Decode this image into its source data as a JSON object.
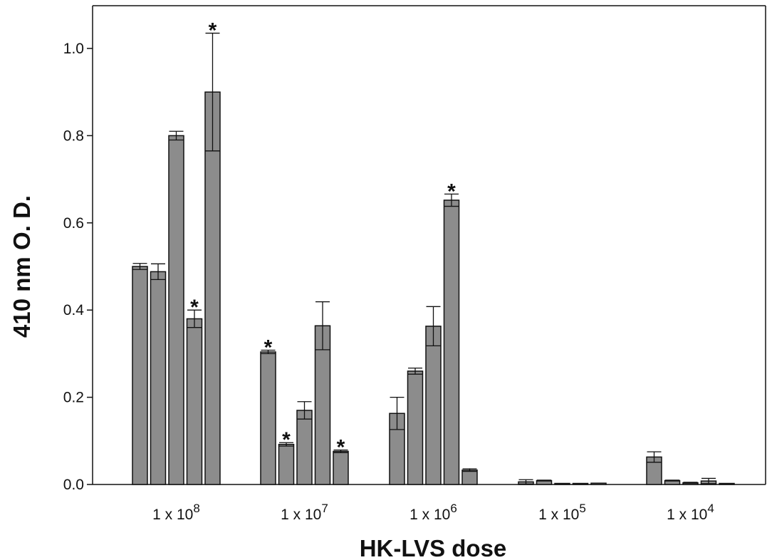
{
  "chart_data": {
    "type": "bar",
    "xlabel": "HK-LVS dose",
    "ylabel": "410 nm O. D.",
    "ylim": [
      0,
      1.0
    ],
    "yticks": [
      0.0,
      0.2,
      0.4,
      0.6,
      0.8,
      1.0
    ],
    "ytick_labels": [
      "0.0",
      "0.2",
      "0.4",
      "0.6",
      "0.8",
      "1.0"
    ],
    "grid": false,
    "bar_color": "#8c8c8c",
    "groups": [
      {
        "label": "1 x 10",
        "exponent": "8",
        "bars": [
          {
            "value": 0.5,
            "error": 0.007,
            "star": ""
          },
          {
            "value": 0.488,
            "error": 0.018,
            "star": ""
          },
          {
            "value": 0.8,
            "error": 0.01,
            "star": ""
          },
          {
            "value": 0.38,
            "error": 0.02,
            "star": "*"
          },
          {
            "value": 0.9,
            "error": 0.135,
            "star": "*"
          }
        ]
      },
      {
        "label": "1 x 10",
        "exponent": "7",
        "bars": [
          {
            "value": 0.304,
            "error": 0.004,
            "star": "*"
          },
          {
            "value": 0.092,
            "error": 0.004,
            "star": "*"
          },
          {
            "value": 0.17,
            "error": 0.02,
            "star": ""
          },
          {
            "value": 0.364,
            "error": 0.055,
            "star": ""
          },
          {
            "value": 0.076,
            "error": 0.003,
            "star": "*"
          }
        ]
      },
      {
        "label": "1 x 10",
        "exponent": "6",
        "bars": [
          {
            "value": 0.163,
            "error": 0.037,
            "star": ""
          },
          {
            "value": 0.26,
            "error": 0.007,
            "star": ""
          },
          {
            "value": 0.363,
            "error": 0.045,
            "star": ""
          },
          {
            "value": 0.652,
            "error": 0.014,
            "star": "*"
          },
          {
            "value": 0.033,
            "error": 0.003,
            "star": ""
          }
        ]
      },
      {
        "label": "1 x 10",
        "exponent": "5",
        "bars": [
          {
            "value": 0.006,
            "error": 0.005,
            "star": ""
          },
          {
            "value": 0.009,
            "error": 0.001,
            "star": ""
          },
          {
            "value": 0.002,
            "error": 0.0,
            "star": ""
          },
          {
            "value": 0.002,
            "error": 0.0,
            "star": ""
          },
          {
            "value": 0.003,
            "error": 0.0,
            "star": ""
          }
        ]
      },
      {
        "label": "1 x 10",
        "exponent": "4",
        "bars": [
          {
            "value": 0.063,
            "error": 0.012,
            "star": ""
          },
          {
            "value": 0.009,
            "error": 0.001,
            "star": ""
          },
          {
            "value": 0.004,
            "error": 0.001,
            "star": ""
          },
          {
            "value": 0.008,
            "error": 0.006,
            "star": ""
          },
          {
            "value": 0.002,
            "error": 0.0,
            "star": ""
          }
        ]
      }
    ]
  }
}
